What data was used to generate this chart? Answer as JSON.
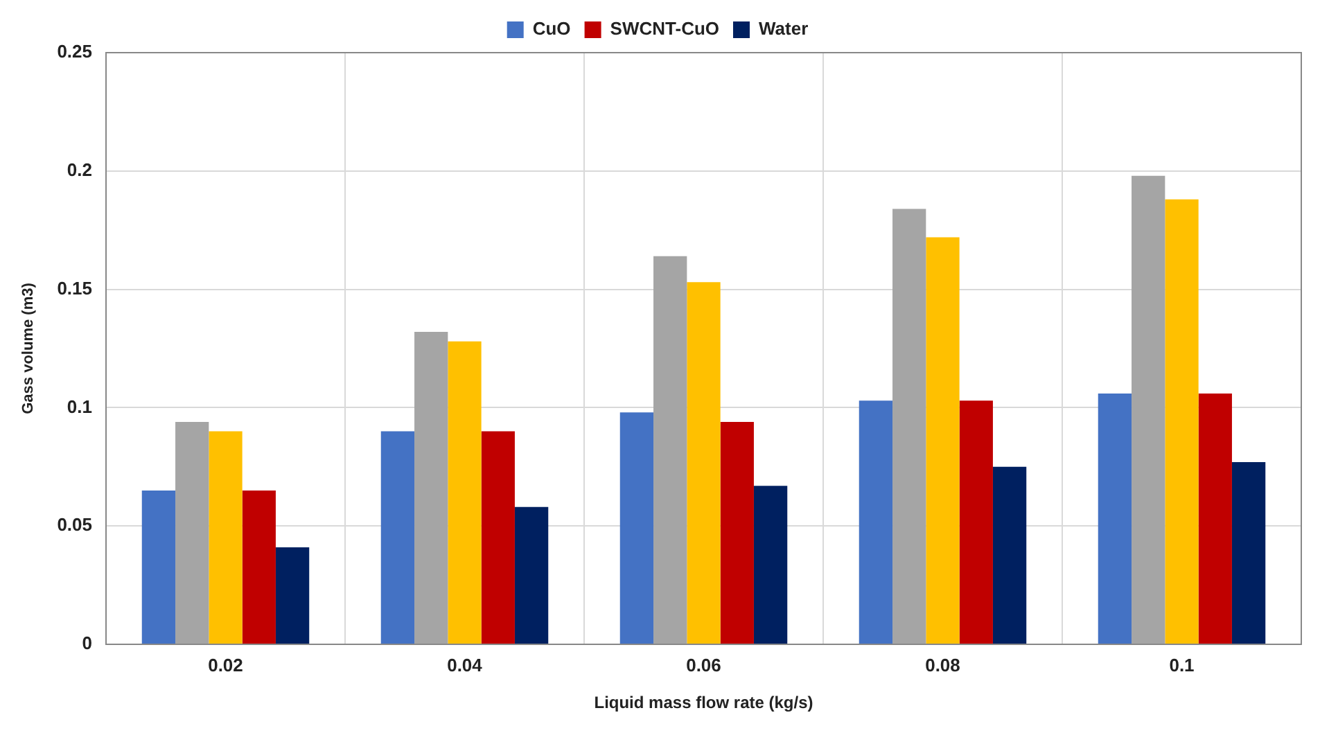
{
  "chart_data": {
    "type": "bar",
    "xlabel": "Liquid mass flow rate (kg/s)",
    "ylabel": "Gass volume (m3)",
    "categories": [
      "0.02",
      "0.04",
      "0.06",
      "0.08",
      "0.1"
    ],
    "series": [
      {
        "name": "CuO",
        "color": "#4472c4",
        "values": [
          0.065,
          0.09,
          0.098,
          0.103,
          0.106
        ]
      },
      {
        "color": "#a5a5a5",
        "values": [
          0.094,
          0.132,
          0.164,
          0.184,
          0.198
        ]
      },
      {
        "color": "#ffc000",
        "values": [
          0.09,
          0.128,
          0.153,
          0.172,
          0.188
        ]
      },
      {
        "name": "SWCNT-CuO",
        "color": "#c00000",
        "values": [
          0.065,
          0.09,
          0.094,
          0.103,
          0.106
        ]
      },
      {
        "name": "Water",
        "color": "#002060",
        "values": [
          0.041,
          0.058,
          0.067,
          0.075,
          0.077
        ]
      }
    ],
    "ylim": [
      0,
      0.25
    ],
    "yticks": [
      0,
      0.05,
      0.1,
      0.15,
      0.2,
      0.25
    ],
    "grid": true,
    "legend": "top"
  }
}
